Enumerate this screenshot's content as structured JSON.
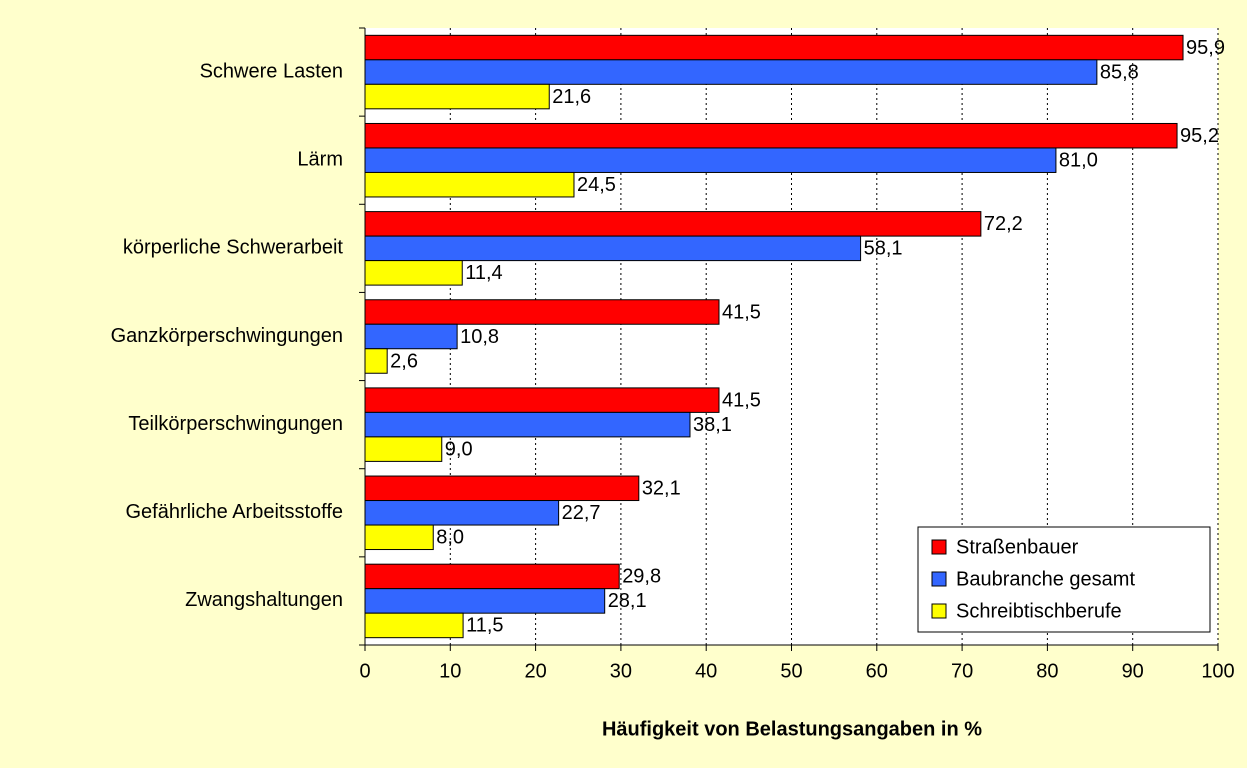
{
  "chart_data": {
    "type": "hbar",
    "x_label": "Häufigkeit von Belastungsangaben in %",
    "categories": [
      "Schwere Lasten",
      "Lärm",
      "körperliche Schwerarbeit",
      "Ganzkörperschwingungen",
      "Teilkörperschwingungen",
      "Gefährliche Arbeitsstoffe",
      "Zwangshaltungen"
    ],
    "series": [
      {
        "name": "Straßenbauer",
        "color": "#ff0000",
        "values": [
          95.9,
          95.2,
          72.2,
          41.5,
          41.5,
          32.1,
          29.8
        ],
        "value_labels": [
          "95,9",
          "95,2",
          "72,2",
          "41,5",
          "41,5",
          "32,1",
          "29,8"
        ]
      },
      {
        "name": "Baubranche gesamt",
        "color": "#3366ff",
        "values": [
          85.8,
          81.0,
          58.1,
          10.8,
          38.1,
          22.7,
          28.1
        ],
        "value_labels": [
          "85,8",
          "81,0",
          "58,1",
          "10,8",
          "38,1",
          "22,7",
          "28,1"
        ]
      },
      {
        "name": "Schreibtischberufe",
        "color": "#ffff00",
        "values": [
          21.6,
          24.5,
          11.4,
          2.6,
          9.0,
          8.0,
          11.5
        ],
        "value_labels": [
          "21,6",
          "24,5",
          "11,4",
          "2,6",
          "9,0",
          "8,0",
          "11,5"
        ]
      }
    ],
    "xlim": [
      0,
      100
    ],
    "xticks": [
      0,
      10,
      20,
      30,
      40,
      50,
      60,
      70,
      80,
      90,
      100
    ],
    "grid": true,
    "legend": "lower right"
  }
}
